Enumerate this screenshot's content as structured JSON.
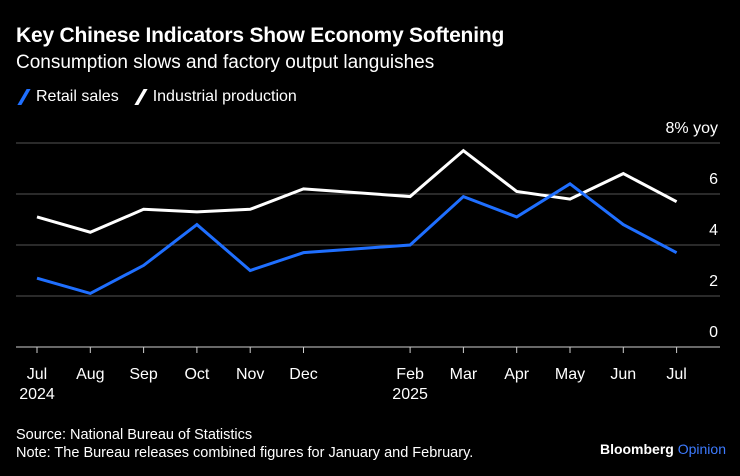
{
  "chart_data": {
    "type": "line",
    "title": "Key Chinese Indicators Show Economy Softening",
    "subtitle": "Consumption slows and factory output languishes",
    "x": [
      "2024-07",
      "2024-08",
      "2024-09",
      "2024-10",
      "2024-11",
      "2024-12",
      "2025-02",
      "2025-03",
      "2025-04",
      "2025-05",
      "2025-06",
      "2025-07"
    ],
    "x_tick_labels": [
      {
        "label": "Jul",
        "year": "2024"
      },
      {
        "label": "Aug",
        "year": ""
      },
      {
        "label": "Sep",
        "year": ""
      },
      {
        "label": "Oct",
        "year": ""
      },
      {
        "label": "Nov",
        "year": ""
      },
      {
        "label": "Dec",
        "year": ""
      },
      {
        "label": "Feb",
        "year": "2025"
      },
      {
        "label": "Mar",
        "year": ""
      },
      {
        "label": "Apr",
        "year": ""
      },
      {
        "label": "May",
        "year": ""
      },
      {
        "label": "Jun",
        "year": ""
      },
      {
        "label": "Jul",
        "year": ""
      }
    ],
    "series": [
      {
        "name": "Retail sales",
        "color": "#1f6fff",
        "values": [
          2.7,
          2.1,
          3.2,
          4.8,
          3.0,
          3.7,
          4.0,
          5.9,
          5.1,
          6.4,
          4.8,
          3.7
        ]
      },
      {
        "name": "Industrial production",
        "color": "#ffffff",
        "values": [
          5.1,
          4.5,
          5.4,
          5.3,
          5.4,
          6.2,
          5.9,
          7.7,
          6.1,
          5.8,
          6.8,
          5.7
        ]
      }
    ],
    "y_ticks": [
      "0",
      "2",
      "4",
      "6",
      "8% yoy"
    ],
    "ylim": [
      0,
      8
    ],
    "y_axis_position": "right",
    "grid": true,
    "legend_placement": "top-left"
  },
  "footer": {
    "source": "Source: National Bureau of Statistics",
    "note": "Note: The Bureau releases combined figures for January and February."
  },
  "brand": {
    "name": "Bloomberg",
    "suffix": "Opinion"
  }
}
